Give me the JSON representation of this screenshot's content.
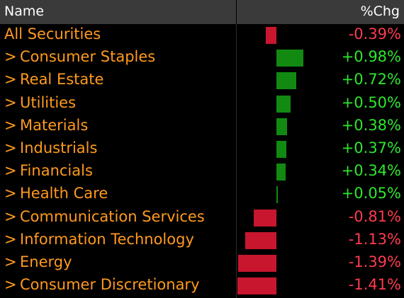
{
  "header": {
    "name_label": "Name",
    "chg_label": "%Chg"
  },
  "colors": {
    "positive_bar": "#128a12",
    "negative_bar": "#c8162f",
    "positive_text": "#2ee62e",
    "negative_text": "#ff3b4e",
    "label_text": "#ff9a1f",
    "header_bg": "#3a3a3a"
  },
  "rows": [
    {
      "chevron": "",
      "name": "All Securities",
      "value": -0.39,
      "display": "-0.39%"
    },
    {
      "chevron": ">",
      "name": "Consumer Staples",
      "value": 0.98,
      "display": "+0.98%"
    },
    {
      "chevron": ">",
      "name": "Real Estate",
      "value": 0.72,
      "display": "+0.72%"
    },
    {
      "chevron": ">",
      "name": "Utilities",
      "value": 0.5,
      "display": "+0.50%"
    },
    {
      "chevron": ">",
      "name": "Materials",
      "value": 0.38,
      "display": "+0.38%"
    },
    {
      "chevron": ">",
      "name": "Industrials",
      "value": 0.37,
      "display": "+0.37%"
    },
    {
      "chevron": ">",
      "name": "Financials",
      "value": 0.34,
      "display": "+0.34%"
    },
    {
      "chevron": ">",
      "name": "Health Care",
      "value": 0.05,
      "display": "+0.05%"
    },
    {
      "chevron": ">",
      "name": "Communication Services",
      "value": -0.81,
      "display": "-0.81%"
    },
    {
      "chevron": ">",
      "name": "Information Technology",
      "value": -1.13,
      "display": "-1.13%"
    },
    {
      "chevron": ">",
      "name": "Energy",
      "value": -1.39,
      "display": "-1.39%"
    },
    {
      "chevron": ">",
      "name": "Consumer Discretionary",
      "value": -1.41,
      "display": "-1.41%"
    }
  ]
}
